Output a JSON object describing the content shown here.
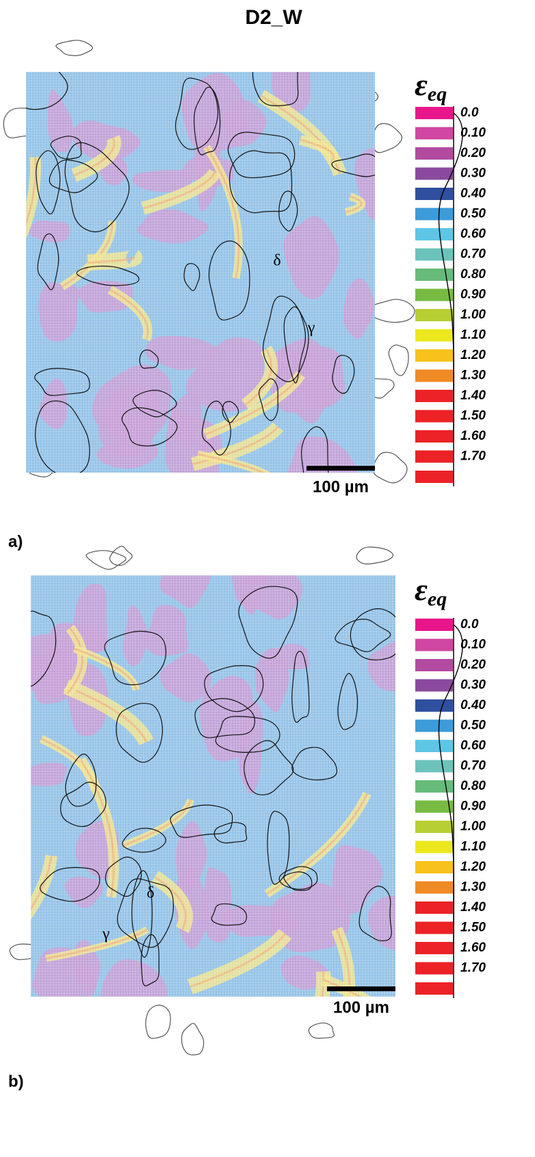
{
  "title": "D2_W",
  "panels": [
    {
      "label": "a)",
      "symbol": "ε",
      "subscript": "eq",
      "labels": [
        "0.0",
        "0.10",
        "0.20",
        "0.30",
        "0.40",
        "0.50",
        "0.60",
        "0.70",
        "0.80",
        "0.90",
        "1.00",
        "1.10",
        "1.20",
        "1.30",
        "1.40",
        "1.50",
        "1.60",
        "1.70"
      ],
      "colors": [
        "#e9158b",
        "#cf47a0",
        "#b24b9f",
        "#8a4a9d",
        "#2f4f9f",
        "#3d9bd8",
        "#5ec6e5",
        "#6cc3bb",
        "#67bb7a",
        "#77bb43",
        "#b8cf33",
        "#ece81d",
        "#f7c21b",
        "#f08a24",
        "#ec2227",
        "#ec2227",
        "#ec2227",
        "#ec2227",
        "#ec2227"
      ],
      "scale_bar": "100 µm",
      "phases": [
        "δ",
        "γ"
      ]
    },
    {
      "label": "b)",
      "symbol": "ε",
      "subscript": "eq",
      "labels": [
        "0.0",
        "0.10",
        "0.20",
        "0.30",
        "0.40",
        "0.50",
        "0.60",
        "0.70",
        "0.80",
        "0.90",
        "1.00",
        "1.10",
        "1.20",
        "1.30",
        "1.40",
        "1.50",
        "1.60",
        "1.70"
      ],
      "colors": [
        "#e9158b",
        "#cf47a0",
        "#b24b9f",
        "#8a4a9d",
        "#2f4f9f",
        "#3d9bd8",
        "#5ec6e5",
        "#6cc3bb",
        "#67bb7a",
        "#77bb43",
        "#b8cf33",
        "#ece81d",
        "#f7c21b",
        "#f08a24",
        "#ec2227",
        "#ec2227",
        "#ec2227",
        "#ec2227",
        "#ec2227"
      ],
      "scale_bar": "100 µm",
      "phases": [
        "δ",
        "γ"
      ]
    }
  ]
}
